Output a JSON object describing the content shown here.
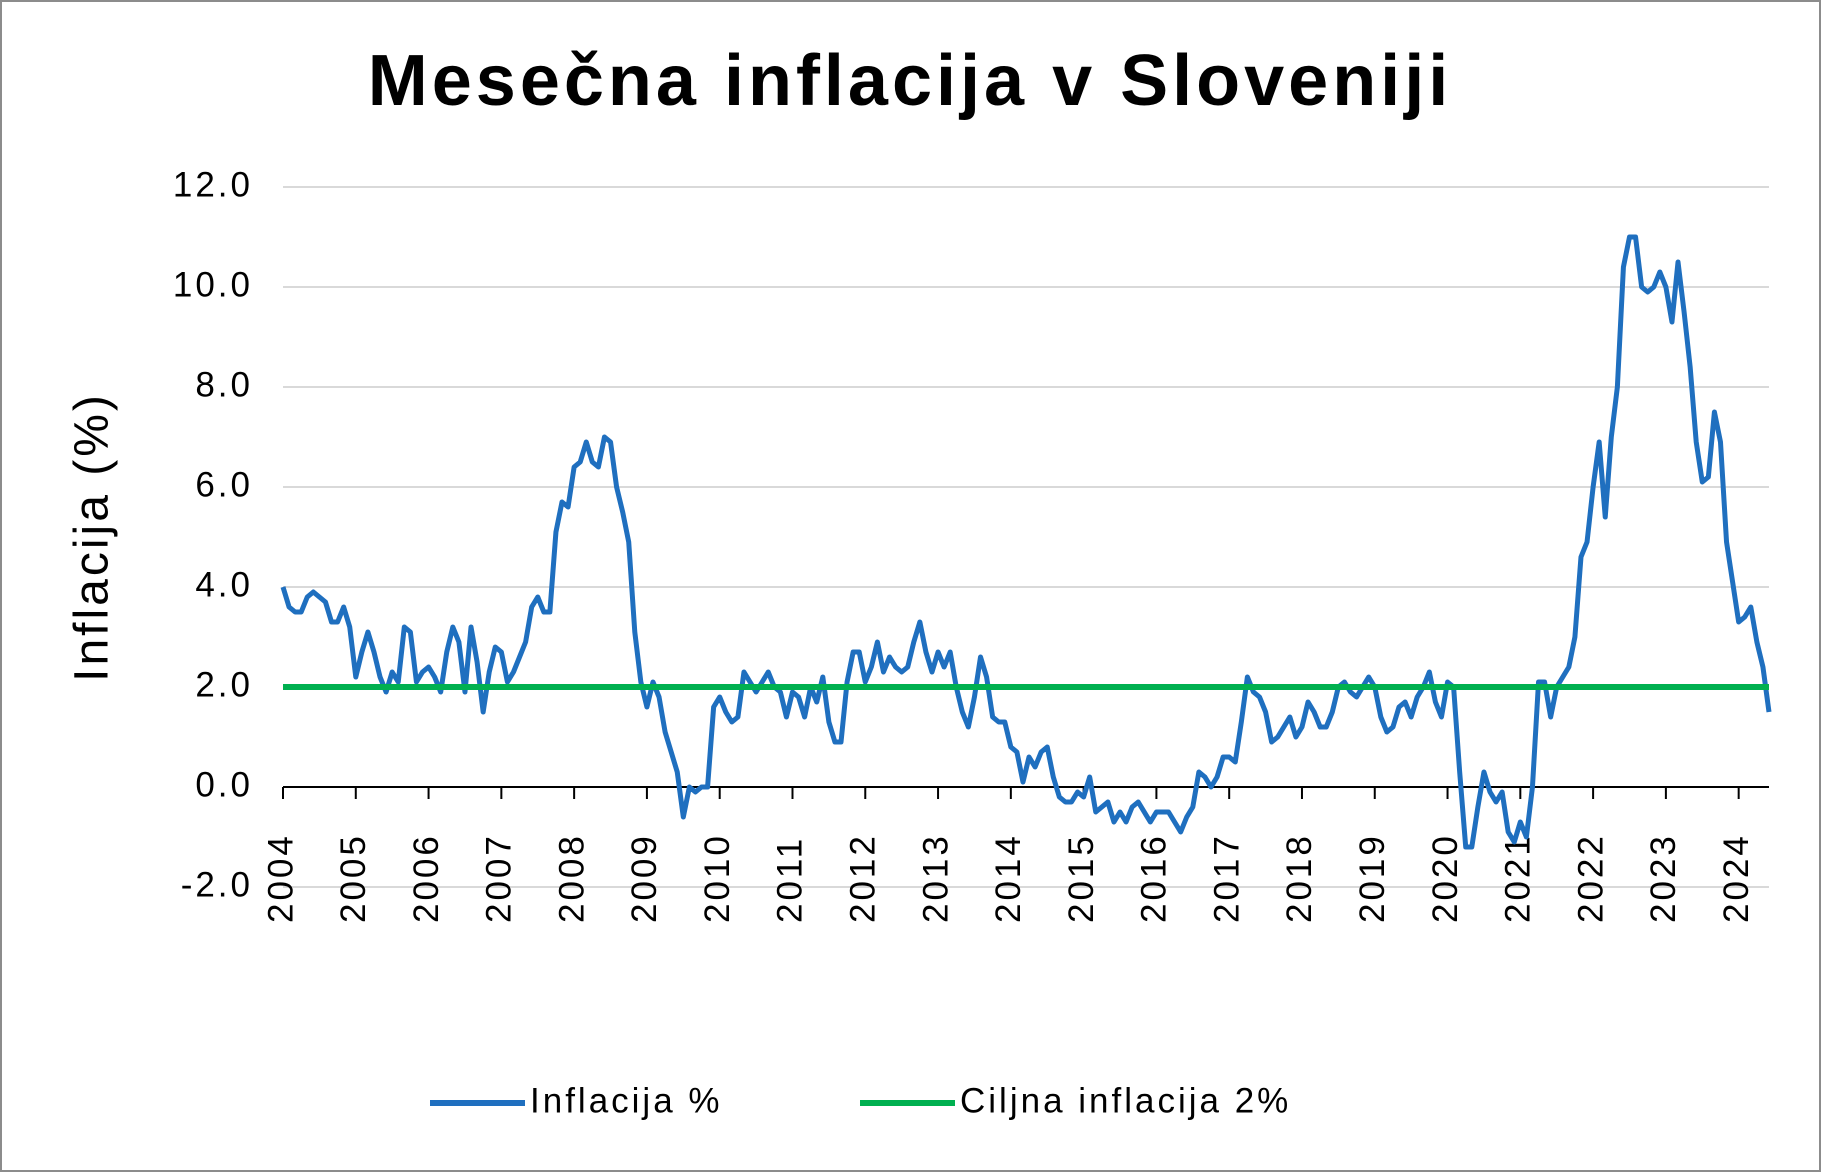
{
  "chart_data": {
    "type": "line",
    "title": "Mesečna inflacija v Sloveniji",
    "y_label": "Inflacija (%)",
    "ylim": [
      -2,
      12
    ],
    "yticks": [
      {
        "value": -2,
        "label": "-2.0"
      },
      {
        "value": 0,
        "label": "0.0"
      },
      {
        "value": 2,
        "label": "2.0"
      },
      {
        "value": 4,
        "label": "4.0"
      },
      {
        "value": 6,
        "label": "6.0"
      },
      {
        "value": 8,
        "label": "8.0"
      },
      {
        "value": 10,
        "label": "10.0"
      },
      {
        "value": 12,
        "label": "12.0"
      }
    ],
    "grid": true,
    "categories": [
      "2004",
      null,
      null,
      null,
      null,
      null,
      null,
      null,
      null,
      null,
      null,
      null,
      "2005",
      null,
      null,
      null,
      null,
      null,
      null,
      null,
      null,
      null,
      null,
      null,
      "2006",
      null,
      null,
      null,
      null,
      null,
      null,
      null,
      null,
      null,
      null,
      null,
      "2007",
      null,
      null,
      null,
      null,
      null,
      null,
      null,
      null,
      null,
      null,
      null,
      "2008",
      null,
      null,
      null,
      null,
      null,
      null,
      null,
      null,
      null,
      null,
      null,
      "2009",
      null,
      null,
      null,
      null,
      null,
      null,
      null,
      null,
      null,
      null,
      null,
      "2010",
      null,
      null,
      null,
      null,
      null,
      null,
      null,
      null,
      null,
      null,
      null,
      "2011",
      null,
      null,
      null,
      null,
      null,
      null,
      null,
      null,
      null,
      null,
      null,
      "2012",
      null,
      null,
      null,
      null,
      null,
      null,
      null,
      null,
      null,
      null,
      null,
      "2013",
      null,
      null,
      null,
      null,
      null,
      null,
      null,
      null,
      null,
      null,
      null,
      "2014",
      null,
      null,
      null,
      null,
      null,
      null,
      null,
      null,
      null,
      null,
      null,
      "2015",
      null,
      null,
      null,
      null,
      null,
      null,
      null,
      null,
      null,
      null,
      null,
      "2016",
      null,
      null,
      null,
      null,
      null,
      null,
      null,
      null,
      null,
      null,
      null,
      "2017",
      null,
      null,
      null,
      null,
      null,
      null,
      null,
      null,
      null,
      null,
      null,
      "2018",
      null,
      null,
      null,
      null,
      null,
      null,
      null,
      null,
      null,
      null,
      null,
      "2019",
      null,
      null,
      null,
      null,
      null,
      null,
      null,
      null,
      null,
      null,
      null,
      "2020",
      null,
      null,
      null,
      null,
      null,
      null,
      null,
      null,
      null,
      null,
      null,
      "2021",
      null,
      null,
      null,
      null,
      null,
      null,
      null,
      null,
      null,
      null,
      null,
      "2022",
      null,
      null,
      null,
      null,
      null,
      null,
      null,
      null,
      null,
      null,
      null,
      "2023",
      null,
      null,
      null,
      null,
      null,
      null,
      null,
      null,
      null,
      null,
      null,
      "2024",
      null,
      null,
      null,
      null,
      null
    ],
    "series": [
      {
        "name": "Inflacija %",
        "color": "#1f6fbf",
        "values": [
          4.0,
          3.6,
          3.5,
          3.5,
          3.8,
          3.9,
          3.8,
          3.7,
          3.3,
          3.3,
          3.6,
          3.2,
          2.2,
          2.7,
          3.1,
          2.7,
          2.2,
          1.9,
          2.3,
          2.1,
          3.2,
          3.1,
          2.1,
          2.3,
          2.4,
          2.2,
          1.9,
          2.7,
          3.2,
          2.9,
          1.9,
          3.2,
          2.5,
          1.5,
          2.3,
          2.8,
          2.7,
          2.1,
          2.3,
          2.6,
          2.9,
          3.6,
          3.8,
          3.5,
          3.5,
          5.1,
          5.7,
          5.6,
          6.4,
          6.5,
          6.9,
          6.5,
          6.4,
          7.0,
          6.9,
          6.0,
          5.5,
          4.9,
          3.1,
          2.1,
          1.6,
          2.1,
          1.8,
          1.1,
          0.7,
          0.3,
          -0.6,
          0.0,
          -0.1,
          0.0,
          0.0,
          1.6,
          1.8,
          1.5,
          1.3,
          1.4,
          2.3,
          2.1,
          1.9,
          2.1,
          2.3,
          2.0,
          1.9,
          1.4,
          1.9,
          1.8,
          1.4,
          2.0,
          1.7,
          2.2,
          1.3,
          0.9,
          0.9,
          2.1,
          2.7,
          2.7,
          2.1,
          2.4,
          2.9,
          2.3,
          2.6,
          2.4,
          2.3,
          2.4,
          2.9,
          3.3,
          2.7,
          2.3,
          2.7,
          2.4,
          2.7,
          2.0,
          1.5,
          1.2,
          1.8,
          2.6,
          2.2,
          1.4,
          1.3,
          1.3,
          0.8,
          0.7,
          0.1,
          0.6,
          0.4,
          0.7,
          0.8,
          0.2,
          -0.2,
          -0.3,
          -0.3,
          -0.1,
          -0.2,
          0.2,
          -0.5,
          -0.4,
          -0.3,
          -0.7,
          -0.5,
          -0.7,
          -0.4,
          -0.3,
          -0.5,
          -0.7,
          -0.5,
          -0.5,
          -0.5,
          -0.7,
          -0.9,
          -0.6,
          -0.4,
          0.3,
          0.2,
          0.0,
          0.2,
          0.6,
          0.6,
          0.5,
          1.3,
          2.2,
          1.9,
          1.8,
          1.5,
          0.9,
          1.0,
          1.2,
          1.4,
          1.0,
          1.2,
          1.7,
          1.5,
          1.2,
          1.2,
          1.5,
          2.0,
          2.1,
          1.9,
          1.8,
          2.0,
          2.2,
          2.0,
          1.4,
          1.1,
          1.2,
          1.6,
          1.7,
          1.4,
          1.8,
          2.0,
          2.3,
          1.7,
          1.4,
          2.1,
          2.0,
          0.3,
          -1.2,
          -1.2,
          -0.4,
          0.3,
          -0.1,
          -0.3,
          -0.1,
          -0.9,
          -1.1,
          -0.7,
          -1.0,
          0.0,
          2.1,
          2.1,
          1.4,
          2.0,
          2.2,
          2.4,
          3.0,
          4.6,
          4.9,
          6.0,
          6.9,
          5.4,
          7.0,
          8.0,
          10.4,
          11.0,
          11.0,
          10.0,
          9.9,
          10.0,
          10.3,
          10.0,
          9.3,
          10.5,
          9.5,
          8.4,
          6.9,
          6.1,
          6.2,
          7.5,
          6.9,
          4.9,
          4.1,
          3.3,
          3.4,
          3.6,
          2.9,
          2.4,
          1.5
        ]
      }
    ],
    "reference_line": {
      "name": "Ciljna inflacija 2%",
      "value": 2,
      "color": "#00b050"
    }
  }
}
